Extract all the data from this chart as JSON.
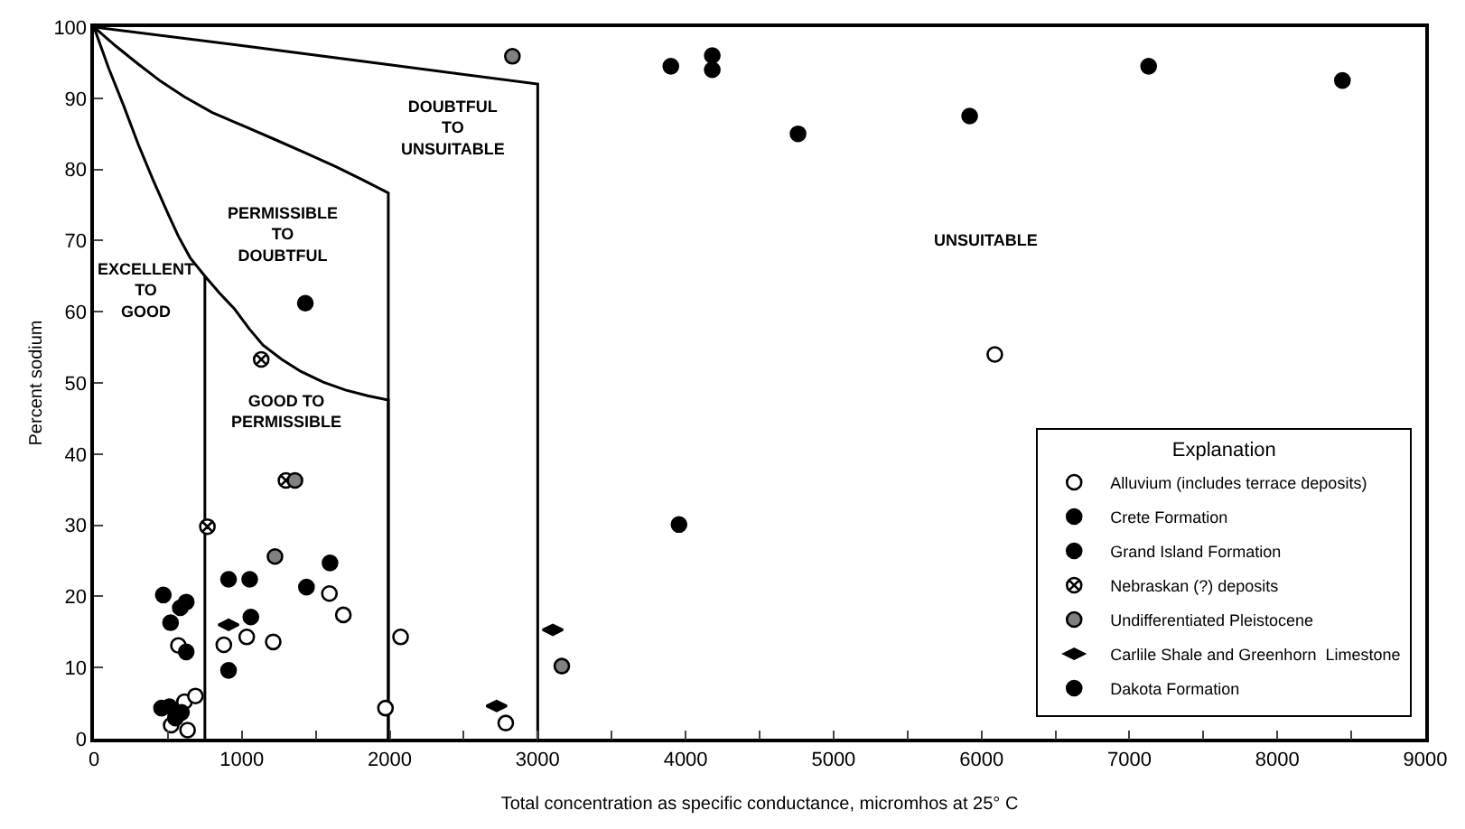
{
  "chart_data": {
    "type": "scatter",
    "xlabel": "Total concentration as specific conductance, micromhos at 25° C",
    "ylabel": "Percent sodium",
    "legend_title": "Explanation",
    "legend": "bottom right",
    "xlim": [
      0,
      9000
    ],
    "ylim": [
      0,
      100
    ],
    "xticks": [
      0,
      {
        "value": 500,
        "label": null
      },
      1000,
      {
        "value": 1500,
        "label": null
      },
      2000,
      {
        "value": 2500,
        "label": null
      },
      3000,
      {
        "value": 3500,
        "label": null
      },
      4000,
      {
        "value": 4500,
        "label": null
      },
      5000,
      {
        "value": 5500,
        "label": null
      },
      6000,
      {
        "value": 6500,
        "label": null
      },
      7000,
      {
        "value": 7500,
        "label": null
      },
      8000,
      {
        "value": 8500,
        "label": null
      },
      9000
    ],
    "yticks": [
      0,
      10,
      20,
      30,
      40,
      50,
      60,
      70,
      80,
      90,
      100
    ],
    "series": [
      {
        "type": "line",
        "color": "#000000",
        "marker": "none",
        "x": [
          0,
          1000,
          2000,
          3000,
          3000
        ],
        "values": [
          100,
          97.4,
          94.7,
          92,
          0
        ]
      },
      {
        "type": "line",
        "color": "#000000",
        "marker": "none",
        "x": [
          0,
          150,
          300,
          450,
          612,
          800,
          1000,
          1224,
          1430,
          1633,
          1810,
          1990,
          1990
        ],
        "values": [
          100,
          97.3,
          94.8,
          92.4,
          90.2,
          88,
          86.2,
          84.2,
          82.3,
          80.4,
          78.6,
          76.7,
          0
        ]
      },
      {
        "type": "line",
        "color": "#000000",
        "marker": "none",
        "x": [
          0,
          100,
          200,
          300,
          400,
          500,
          571,
          650,
          750
        ],
        "values": [
          100,
          94.2,
          89,
          83.5,
          78.5,
          73.8,
          70.6,
          67.6,
          65
        ]
      },
      {
        "type": "line",
        "color": "#000000",
        "marker": "none",
        "x": [
          750,
          750,
          850,
          950,
          1050,
          1143,
          1270,
          1400,
          1550,
          1700,
          1850,
          1990,
          1990
        ],
        "values": [
          0,
          65,
          62.6,
          60.4,
          57.6,
          55.3,
          53.3,
          51.6,
          50.1,
          49,
          48.2,
          47.6,
          0
        ]
      },
      {
        "name": "Alluvium (includes terrace deposits)",
        "color": "#ffffff",
        "marker": "circle",
        "x": [
          571,
          612,
          686,
          522,
          633,
          878,
          1033,
          1212,
          1592,
          1686,
          1971,
          2073,
          2784,
          6090
        ],
        "values": [
          13.1,
          5.2,
          6.0,
          1.9,
          1.2,
          13.2,
          14.3,
          13.6,
          20.4,
          17.4,
          4.3,
          14.3,
          2.2,
          54
        ]
      },
      {
        "name": "Crete Formation",
        "color": "#000000",
        "marker": "circle",
        "x": [
          469,
          518,
          910,
          1053
        ],
        "values": [
          20.2,
          16.3,
          22.4,
          22.4
        ]
      },
      {
        "name": "Grand Island Formation",
        "color": "#000000",
        "marker": "circle",
        "x": [
          584,
          624,
          624,
          457,
          510,
          592,
          551,
          1061,
          910,
          1437,
          1596
        ],
        "values": [
          18.4,
          19.2,
          12.2,
          4.3,
          4.5,
          3.7,
          2.9,
          17.1,
          9.6,
          21.3,
          24.7
        ]
      },
      {
        "name": "Nebraskan (?) deposits",
        "color": "#ffffff",
        "marker": "cross",
        "x": [
          1131,
          767,
          1298
        ],
        "values": [
          53.3,
          29.8,
          36.3
        ]
      },
      {
        "name": "Undifferentiated Pleistocene",
        "color": "#808080",
        "marker": "circle",
        "x": [
          1224,
          2829,
          3163,
          1359
        ],
        "values": [
          25.6,
          95.9,
          10.2,
          36.3
        ]
      },
      {
        "name": "Carlile Shale and Greenhorn  Limestone",
        "color": "#000000",
        "marker": "diamond",
        "x": [
          3102,
          2722,
          910
        ],
        "values": [
          15.3,
          4.6,
          16
        ]
      },
      {
        "name": "Dakota Formation",
        "color": "#000000",
        "marker": "circle",
        "x": [
          1429,
          3955,
          3900,
          4180,
          4180,
          4760,
          5920,
          7130,
          8440
        ],
        "values": [
          61.2,
          30.1,
          94.5,
          96,
          94,
          85,
          87.5,
          94.5,
          92.5
        ]
      }
    ],
    "annotations": [
      "EXCELLENT\nTO\nGOOD",
      "PERMISSIBLE\nTO\nDOUBTFUL",
      "GOOD TO\nPERMISSIBLE",
      "DOUBTFUL\nTO\nUNSUITABLE",
      "UNSUITABLE"
    ]
  }
}
